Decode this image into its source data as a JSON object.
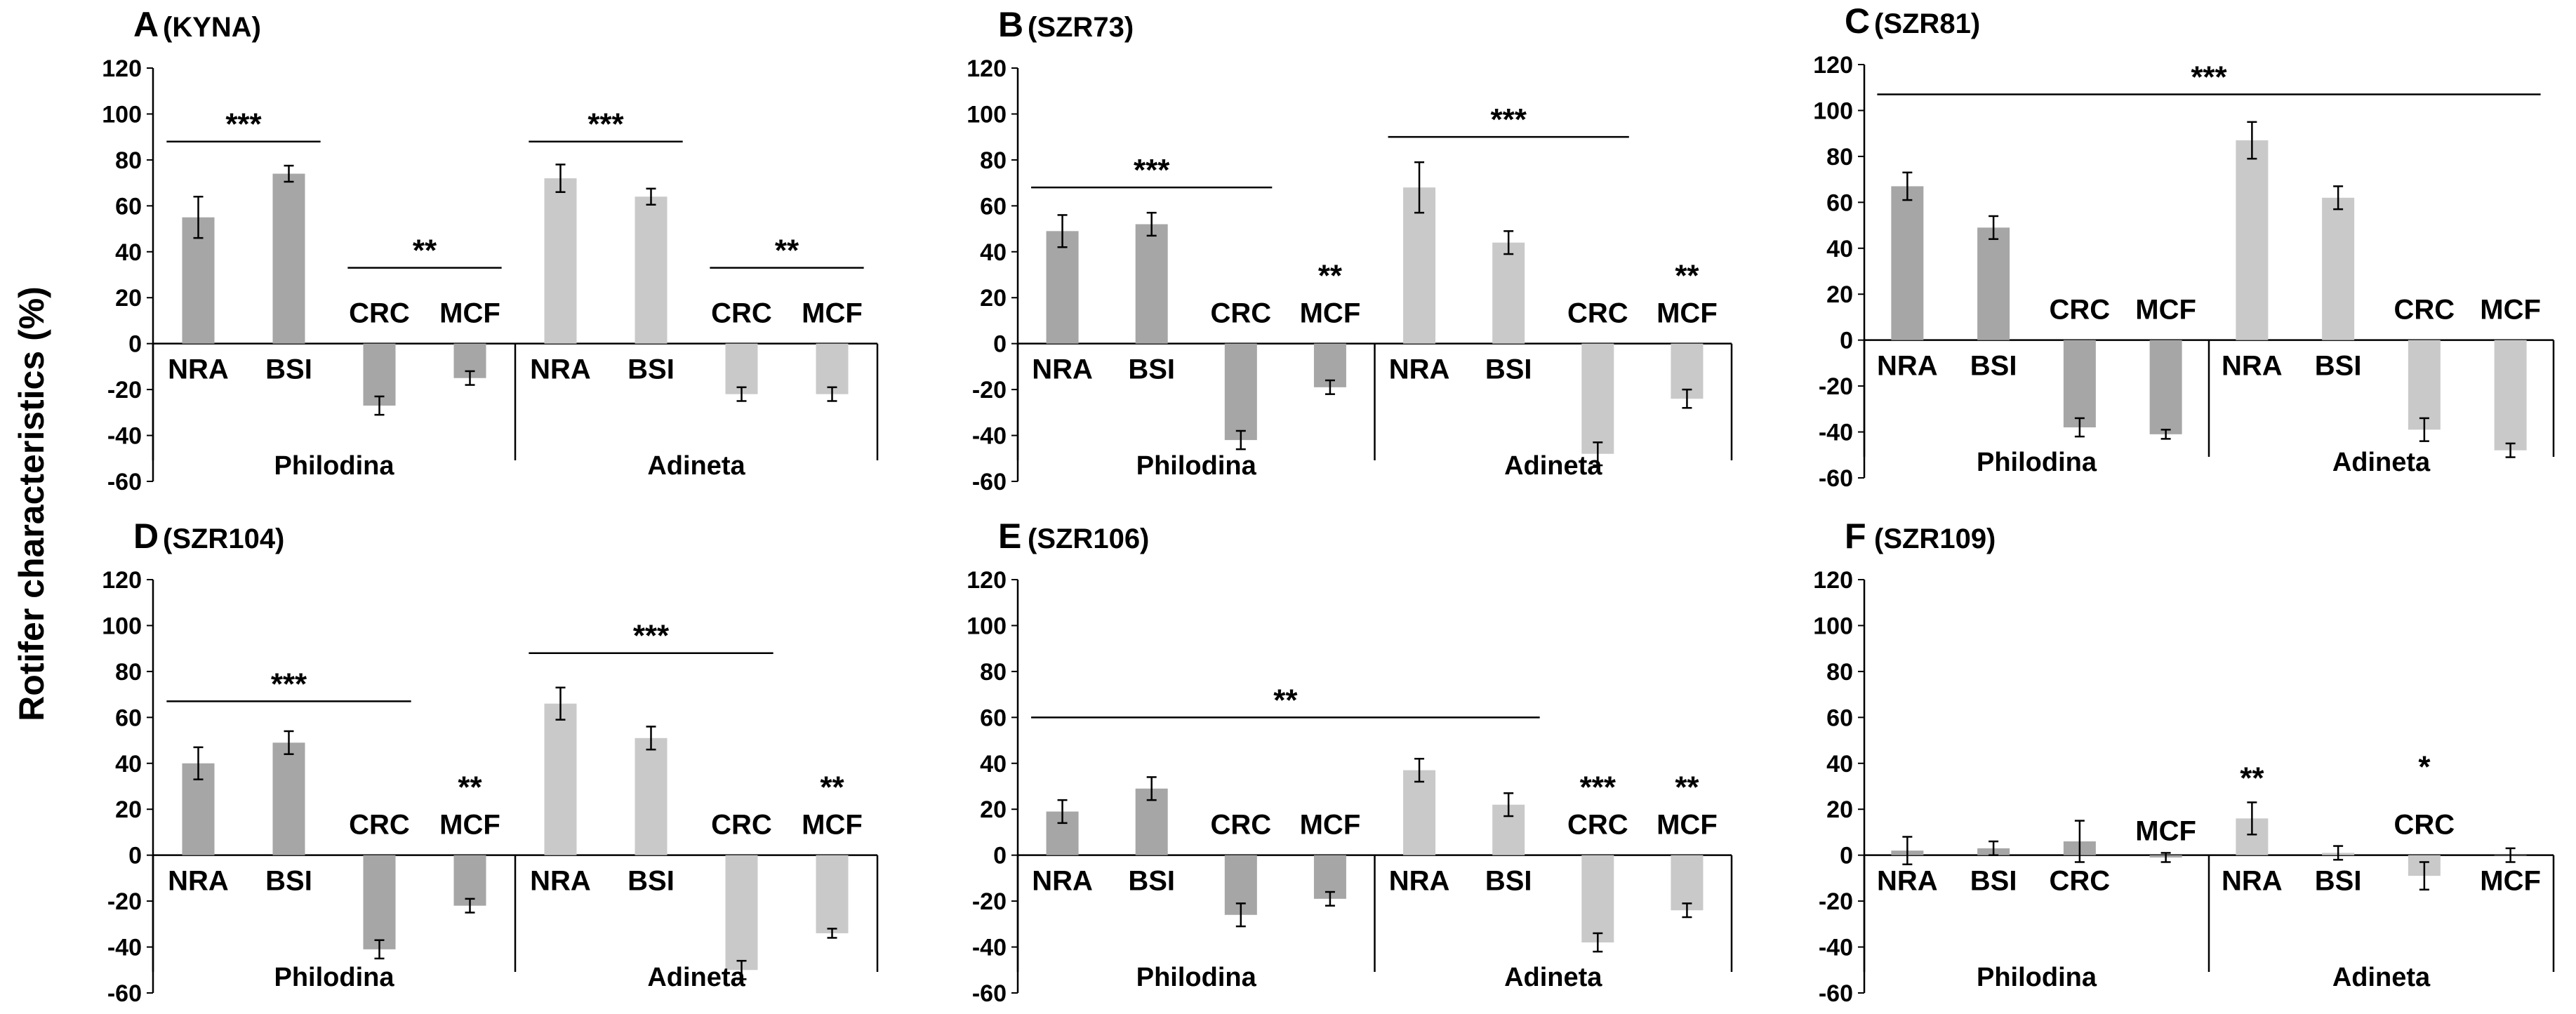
{
  "figure": {
    "ylabel": "Rotifer characteristics (%)",
    "colors": {
      "philodina": "#a6a6a6",
      "adineta": "#c9c9c9",
      "axis": "#000000"
    }
  },
  "chart_data": [
    {
      "type": "bar",
      "panel": "A",
      "title_letter": "A",
      "title_text": "(KYNA)",
      "ylim": [
        -60,
        120
      ],
      "yticks": [
        -60,
        -40,
        -20,
        0,
        20,
        40,
        60,
        80,
        100,
        120
      ],
      "grid": false,
      "groups": [
        {
          "name": "Philodina",
          "bars": [
            {
              "label": "NRA",
              "value": 55,
              "error": 9
            },
            {
              "label": "BSI",
              "value": 74,
              "error": 3.5
            },
            {
              "label": "CRC",
              "value": -27,
              "error": 4
            },
            {
              "label": "MCF",
              "value": -15,
              "error": 3
            }
          ]
        },
        {
          "name": "Adineta",
          "bars": [
            {
              "label": "NRA",
              "value": 72,
              "error": 6
            },
            {
              "label": "BSI",
              "value": 64,
              "error": 3.5
            },
            {
              "label": "CRC",
              "value": -22,
              "error": 3
            },
            {
              "label": "MCF",
              "value": -22,
              "error": 3
            }
          ]
        }
      ],
      "significance": [
        {
          "text": "***",
          "from": 0,
          "to": 1,
          "y": 88
        },
        {
          "text": "**",
          "from": 2,
          "to": 3,
          "y": 33
        },
        {
          "text": "***",
          "from": 4,
          "to": 5,
          "y": 88
        },
        {
          "text": "**",
          "from": 6,
          "to": 7,
          "y": 33
        }
      ]
    },
    {
      "type": "bar",
      "panel": "B",
      "title_letter": "B",
      "title_text": "(SZR73)",
      "ylim": [
        -60,
        120
      ],
      "yticks": [
        -60,
        -40,
        -20,
        0,
        20,
        40,
        60,
        80,
        100,
        120
      ],
      "grid": false,
      "groups": [
        {
          "name": "Philodina",
          "bars": [
            {
              "label": "NRA",
              "value": 49,
              "error": 7
            },
            {
              "label": "BSI",
              "value": 52,
              "error": 5
            },
            {
              "label": "CRC",
              "value": -42,
              "error": 4
            },
            {
              "label": "MCF",
              "value": -19,
              "error": 3
            }
          ]
        },
        {
          "name": "Adineta",
          "bars": [
            {
              "label": "NRA",
              "value": 68,
              "error": 11
            },
            {
              "label": "BSI",
              "value": 44,
              "error": 5
            },
            {
              "label": "CRC",
              "value": -48,
              "error": 5
            },
            {
              "label": "MCF",
              "value": -24,
              "error": 4
            }
          ]
        }
      ],
      "significance": [
        {
          "text": "***",
          "from": 0,
          "to": 2,
          "y": 68
        },
        {
          "text": "**",
          "from": 3,
          "to": 3,
          "y": null
        },
        {
          "text": "***",
          "from": 4,
          "to": 6,
          "y": 90
        },
        {
          "text": "**",
          "from": 7,
          "to": 7,
          "y": null
        }
      ]
    },
    {
      "type": "bar",
      "panel": "C",
      "title_letter": "C",
      "title_text": "(SZR81)",
      "ylim": [
        -60,
        120
      ],
      "yticks": [
        -60,
        -40,
        -20,
        0,
        20,
        40,
        60,
        80,
        100,
        120
      ],
      "grid": false,
      "groups": [
        {
          "name": "Philodina",
          "bars": [
            {
              "label": "NRA",
              "value": 67,
              "error": 6
            },
            {
              "label": "BSI",
              "value": 49,
              "error": 5
            },
            {
              "label": "CRC",
              "value": -38,
              "error": 4
            },
            {
              "label": "MCF",
              "value": -41,
              "error": 2
            }
          ]
        },
        {
          "name": "Adineta",
          "bars": [
            {
              "label": "NRA",
              "value": 87,
              "error": 8
            },
            {
              "label": "BSI",
              "value": 62,
              "error": 5
            },
            {
              "label": "CRC",
              "value": -39,
              "error": 5
            },
            {
              "label": "MCF",
              "value": -48,
              "error": 3
            }
          ]
        }
      ],
      "significance": [
        {
          "text": "***",
          "from": 0,
          "to": 7,
          "y": 107
        }
      ]
    },
    {
      "type": "bar",
      "panel": "D",
      "title_letter": "D",
      "title_text": "(SZR104)",
      "ylim": [
        -60,
        120
      ],
      "yticks": [
        -60,
        -40,
        -20,
        0,
        20,
        40,
        60,
        80,
        100,
        120
      ],
      "grid": false,
      "groups": [
        {
          "name": "Philodina",
          "bars": [
            {
              "label": "NRA",
              "value": 40,
              "error": 7
            },
            {
              "label": "BSI",
              "value": 49,
              "error": 5
            },
            {
              "label": "CRC",
              "value": -41,
              "error": 4
            },
            {
              "label": "MCF",
              "value": -22,
              "error": 3
            }
          ]
        },
        {
          "name": "Adineta",
          "bars": [
            {
              "label": "NRA",
              "value": 66,
              "error": 7
            },
            {
              "label": "BSI",
              "value": 51,
              "error": 5
            },
            {
              "label": "CRC",
              "value": -50,
              "error": 4
            },
            {
              "label": "MCF",
              "value": -34,
              "error": 2
            }
          ]
        }
      ],
      "significance": [
        {
          "text": "***",
          "from": 0,
          "to": 2,
          "y": 67
        },
        {
          "text": "**",
          "from": 3,
          "to": 3,
          "y": null
        },
        {
          "text": "***",
          "from": 4,
          "to": 6,
          "y": 88
        },
        {
          "text": "**",
          "from": 7,
          "to": 7,
          "y": null
        }
      ]
    },
    {
      "type": "bar",
      "panel": "E",
      "title_letter": "E",
      "title_text": "(SZR106)",
      "ylim": [
        -60,
        120
      ],
      "yticks": [
        -60,
        -40,
        -20,
        0,
        20,
        40,
        60,
        80,
        100,
        120
      ],
      "grid": false,
      "groups": [
        {
          "name": "Philodina",
          "bars": [
            {
              "label": "NRA",
              "value": 19,
              "error": 5
            },
            {
              "label": "BSI",
              "value": 29,
              "error": 5
            },
            {
              "label": "CRC",
              "value": -26,
              "error": 5
            },
            {
              "label": "MCF",
              "value": -19,
              "error": 3
            }
          ]
        },
        {
          "name": "Adineta",
          "bars": [
            {
              "label": "NRA",
              "value": 37,
              "error": 5
            },
            {
              "label": "BSI",
              "value": 22,
              "error": 5
            },
            {
              "label": "CRC",
              "value": -38,
              "error": 4
            },
            {
              "label": "MCF",
              "value": -24,
              "error": 3
            }
          ]
        }
      ],
      "significance": [
        {
          "text": "**",
          "from": 0,
          "to": 5,
          "y": 60
        },
        {
          "text": "***",
          "from": 6,
          "to": 6,
          "y": null
        },
        {
          "text": "**",
          "from": 7,
          "to": 7,
          "y": null
        }
      ]
    },
    {
      "type": "bar",
      "panel": "F",
      "title_letter": "F",
      "title_text": "(SZR109)",
      "ylim": [
        -60,
        120
      ],
      "yticks": [
        -60,
        -40,
        -20,
        0,
        20,
        40,
        60,
        80,
        100,
        120
      ],
      "grid": false,
      "groups": [
        {
          "name": "Philodina",
          "bars": [
            {
              "label": "NRA",
              "value": 2,
              "error": 6
            },
            {
              "label": "BSI",
              "value": 3,
              "error": 3
            },
            {
              "label": "CRC",
              "value": 6,
              "error": 9
            },
            {
              "label": "MCF",
              "value": -1,
              "error": 2
            }
          ]
        },
        {
          "name": "Adineta",
          "bars": [
            {
              "label": "NRA",
              "value": 16,
              "error": 7
            },
            {
              "label": "BSI",
              "value": 1,
              "error": 3
            },
            {
              "label": "CRC",
              "value": -9,
              "error": 6
            },
            {
              "label": "MCF",
              "value": 0,
              "error": 3
            }
          ]
        }
      ],
      "significance": [
        {
          "text": "**",
          "from": 4,
          "to": 4,
          "y": null
        },
        {
          "text": "*",
          "from": 6,
          "to": 6,
          "y": null
        }
      ]
    }
  ]
}
